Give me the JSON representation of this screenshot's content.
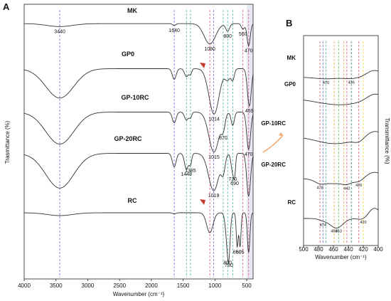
{
  "figure": {
    "panels": [
      "A",
      "B"
    ]
  },
  "colors": {
    "curve": "#333333",
    "arrow_head": "#c0392b",
    "callout_arrow": "#f0a46a",
    "highlight": "#e9e9f5",
    "frame": "#222222"
  },
  "chart_data": [
    {
      "panel": "A",
      "type": "line",
      "xlabel": "Wavenumber (cm⁻¹)",
      "ylabel": "Trasmittance (%)",
      "xlim": [
        4000,
        400
      ],
      "x_reversed": true,
      "xticks": [
        4000,
        3500,
        3000,
        2500,
        2000,
        1500,
        1000,
        500
      ],
      "grid": false,
      "legend": "labels placed above each curve",
      "series": [
        {
          "name": "MK",
          "baseline": 0.9,
          "bands": [
            [
              3440,
              0.08,
              200
            ],
            [
              1640,
              0.05,
              25
            ],
            [
              1080,
              0.55,
              90
            ],
            [
              800,
              0.2,
              30
            ],
            [
              560,
              0.15,
              25
            ],
            [
              470,
              0.6,
              25
            ]
          ]
        },
        {
          "name": "GP0",
          "baseline": 0.9,
          "bands": [
            [
              3440,
              0.55,
              220
            ],
            [
              1640,
              0.2,
              30
            ],
            [
              1448,
              0.15,
              30
            ],
            [
              1385,
              0.1,
              20
            ],
            [
              1014,
              0.85,
              80
            ],
            [
              800,
              0.2,
              40
            ],
            [
              720,
              0.2,
              25
            ],
            [
              459,
              0.7,
              30
            ]
          ]
        },
        {
          "name": "GP-10RC",
          "baseline": 0.9,
          "bands": [
            [
              3440,
              0.6,
              220
            ],
            [
              1640,
              0.2,
              30
            ],
            [
              1448,
              0.15,
              30
            ],
            [
              1385,
              0.1,
              20
            ],
            [
              1015,
              0.75,
              80
            ],
            [
              870,
              0.25,
              30
            ],
            [
              720,
              0.25,
              25
            ],
            [
              470,
              0.7,
              30
            ]
          ]
        },
        {
          "name": "GP-20RC",
          "baseline": 0.9,
          "bands": [
            [
              3440,
              0.65,
              220
            ],
            [
              1640,
              0.25,
              30
            ],
            [
              1448,
              0.3,
              30
            ],
            [
              1385,
              0.2,
              20
            ],
            [
              1019,
              0.7,
              80
            ],
            [
              870,
              0.3,
              30
            ],
            [
              720,
              0.35,
              25
            ],
            [
              690,
              0.3,
              15
            ],
            [
              470,
              0.8,
              30
            ]
          ]
        },
        {
          "name": "RC",
          "baseline": 0.95,
          "bands": [
            [
              3440,
              0.05,
              200
            ],
            [
              1640,
              0.02,
              25
            ],
            [
              1080,
              0.35,
              50
            ],
            [
              800,
              0.55,
              30
            ],
            [
              780,
              0.4,
              20
            ],
            [
              650,
              0.6,
              15
            ],
            [
              605,
              0.6,
              15
            ],
            [
              470,
              0.7,
              20
            ]
          ]
        }
      ],
      "reference_lines": [
        {
          "x": 3440,
          "color": "#6a6ad6"
        },
        {
          "x": 1640,
          "color": "#6a6ad6"
        },
        {
          "x": 1448,
          "color": "#4fb3a8"
        },
        {
          "x": 1385,
          "color": "#4fb3a8"
        },
        {
          "x": 1080,
          "color": "#d95d7a"
        },
        {
          "x": 1019,
          "color": "#6a6ad6"
        },
        {
          "x": 870,
          "color": "#4fb3a8"
        },
        {
          "x": 800,
          "color": "#4fb3a8"
        },
        {
          "x": 720,
          "color": "#4fb3a8"
        },
        {
          "x": 560,
          "color": "#d95d7a"
        },
        {
          "x": 470,
          "color": "#d95d7a"
        }
      ],
      "highlighted_range": [
        500,
        400
      ],
      "annotations": [
        {
          "text": "3440",
          "x": 3440,
          "series": "MK"
        },
        {
          "text": "1640",
          "x": 1640,
          "series": "MK"
        },
        {
          "text": "1080",
          "x": 1080,
          "series": "MK"
        },
        {
          "text": "800",
          "x": 800,
          "series": "MK"
        },
        {
          "text": "560",
          "x": 560,
          "series": "MK"
        },
        {
          "text": "470",
          "x": 470,
          "series": "MK"
        },
        {
          "text": "1014",
          "x": 1014,
          "series": "GP0"
        },
        {
          "text": "459",
          "x": 459,
          "series": "GP0"
        },
        {
          "text": "470",
          "x": 470,
          "series": "GP-10RC"
        },
        {
          "text": "1015",
          "x": 1015,
          "series": "GP-10RC"
        },
        {
          "text": "870",
          "x": 870,
          "series": "GP-10RC"
        },
        {
          "text": "1448",
          "x": 1448,
          "series": "GP-20RC"
        },
        {
          "text": "1385",
          "x": 1385,
          "series": "GP-20RC"
        },
        {
          "text": "720",
          "x": 720,
          "series": "GP-20RC"
        },
        {
          "text": "690",
          "x": 690,
          "series": "GP-20RC"
        },
        {
          "text": "1019",
          "x": 1019,
          "series": "GP-20RC"
        },
        {
          "text": "780",
          "x": 780,
          "series": "RC"
        },
        {
          "text": "800",
          "x": 800,
          "series": "RC"
        },
        {
          "text": "650",
          "x": 650,
          "series": "RC"
        },
        {
          "text": "605",
          "x": 605,
          "series": "RC"
        }
      ]
    },
    {
      "panel": "B",
      "type": "line",
      "xlabel": "Wavenumber (cm⁻¹)",
      "ylabel": "Transmittance (%)",
      "xlim": [
        500,
        400
      ],
      "x_reversed": true,
      "xticks": [
        500,
        480,
        460,
        440,
        420,
        400
      ],
      "grid": false,
      "legend": "labels placed at left of each curve",
      "series": [
        {
          "name": "MK",
          "baseline": 0.25,
          "bands": [
            [
              470,
              0.06,
              15
            ],
            [
              436,
              0.05,
              10
            ],
            [
              405,
              -0.25,
              10
            ]
          ]
        },
        {
          "name": "GP0",
          "baseline": 0.45,
          "bands": [
            [
              470,
              0.12,
              20
            ],
            [
              440,
              0.15,
              20
            ],
            [
              405,
              -0.2,
              10
            ]
          ]
        },
        {
          "name": "GP-10RC",
          "baseline": 0.5,
          "bands": [
            [
              470,
              0.15,
              20
            ],
            [
              445,
              0.15,
              20
            ],
            [
              426,
              0.1,
              6
            ],
            [
              405,
              -0.2,
              10
            ]
          ]
        },
        {
          "name": "GP-20RC",
          "baseline": 0.5,
          "bands": [
            [
              478,
              0.08,
              6
            ],
            [
              460,
              0.2,
              20
            ],
            [
              442,
              0.1,
              6
            ],
            [
              426,
              0.1,
              6
            ],
            [
              405,
              -0.2,
              10
            ]
          ]
        },
        {
          "name": "RC",
          "baseline": 0.5,
          "bands": [
            [
              474,
              0.05,
              6
            ],
            [
              459,
              0.15,
              8
            ],
            [
              453,
              0.15,
              8
            ],
            [
              420,
              0.05,
              6
            ],
            [
              405,
              -0.3,
              8
            ]
          ]
        }
      ],
      "reference_lines": [
        {
          "x": 478,
          "color": "#d95d7a"
        },
        {
          "x": 474,
          "color": "#6a6ad6"
        },
        {
          "x": 470,
          "color": "#4fb3a8"
        },
        {
          "x": 459,
          "color": "#e8a23c"
        },
        {
          "x": 453,
          "color": "#66c266"
        },
        {
          "x": 446,
          "color": "#e8a23c"
        },
        {
          "x": 442,
          "color": "#d95d7a"
        },
        {
          "x": 436,
          "color": "#2e8b57"
        },
        {
          "x": 426,
          "color": "#d95d7a"
        },
        {
          "x": 420,
          "color": "#e8e23c"
        }
      ],
      "annotations": [
        {
          "text": "470",
          "x": 470,
          "series": "MK"
        },
        {
          "text": "436",
          "x": 436,
          "series": "MK"
        },
        {
          "text": "478",
          "x": 478,
          "series": "GP-20RC"
        },
        {
          "text": "442",
          "x": 442,
          "series": "GP-20RC"
        },
        {
          "text": "426",
          "x": 426,
          "series": "GP-20RC"
        },
        {
          "text": "474",
          "x": 474,
          "series": "RC"
        },
        {
          "text": "459",
          "x": 459,
          "series": "RC"
        },
        {
          "text": "453",
          "x": 453,
          "series": "RC"
        },
        {
          "text": "420",
          "x": 420,
          "series": "RC"
        }
      ]
    }
  ]
}
